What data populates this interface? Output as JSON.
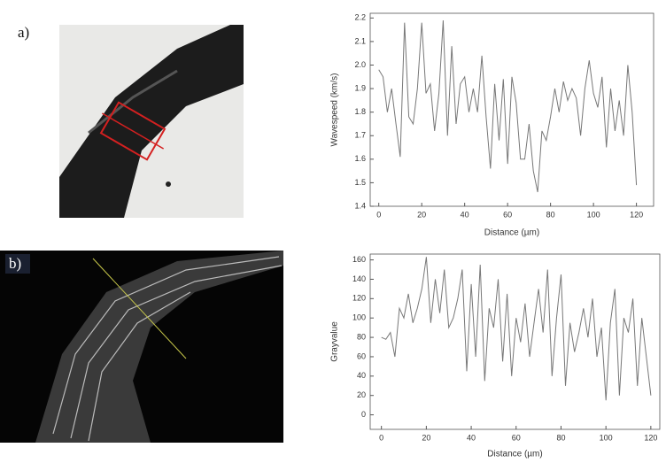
{
  "panels": [
    {
      "label": "a)"
    },
    {
      "label": "b)"
    }
  ],
  "chart_data": [
    {
      "type": "line",
      "x_label": "Distance (µm)",
      "y_label": "Wavespeed (km/s)",
      "color": "#777777",
      "x": [
        0,
        2,
        4,
        6,
        8,
        10,
        12,
        14,
        16,
        18,
        20,
        22,
        24,
        26,
        28,
        30,
        32,
        34,
        36,
        38,
        40,
        42,
        44,
        46,
        48,
        50,
        52,
        54,
        56,
        58,
        60,
        62,
        64,
        66,
        68,
        70,
        72,
        74,
        76,
        78,
        80,
        82,
        84,
        86,
        88,
        90,
        92,
        94,
        96,
        98,
        100,
        102,
        104,
        106,
        108,
        110,
        112,
        114,
        116,
        118,
        120
      ],
      "values": [
        1.98,
        1.95,
        1.8,
        1.9,
        1.75,
        1.61,
        2.18,
        1.78,
        1.75,
        1.9,
        2.18,
        1.88,
        1.92,
        1.72,
        1.88,
        2.19,
        1.7,
        2.08,
        1.75,
        1.92,
        1.95,
        1.8,
        1.9,
        1.8,
        2.04,
        1.78,
        1.56,
        1.92,
        1.68,
        1.94,
        1.58,
        1.95,
        1.84,
        1.6,
        1.6,
        1.75,
        1.55,
        1.46,
        1.72,
        1.68,
        1.78,
        1.9,
        1.8,
        1.93,
        1.85,
        1.9,
        1.86,
        1.7,
        1.9,
        2.02,
        1.88,
        1.82,
        1.95,
        1.65,
        1.9,
        1.72,
        1.85,
        1.7,
        2.0,
        1.8,
        1.49
      ],
      "xlim": [
        -4,
        128
      ],
      "xticks": [
        0,
        20,
        40,
        60,
        80,
        100,
        120
      ],
      "ylim": [
        1.4,
        2.22
      ],
      "yticks": [
        1.4,
        1.5,
        1.6,
        1.7,
        1.8,
        1.9,
        {
          "value": 2,
          "label": "2.0"
        },
        2.1,
        2.2
      ]
    },
    {
      "type": "line",
      "x_label": "Distance (µm)",
      "y_label": "Grayvalue",
      "color": "#777777",
      "x": [
        0,
        2,
        4,
        6,
        8,
        10,
        12,
        14,
        16,
        18,
        20,
        22,
        24,
        26,
        28,
        30,
        32,
        34,
        36,
        38,
        40,
        42,
        44,
        46,
        48,
        50,
        52,
        54,
        56,
        58,
        60,
        62,
        64,
        66,
        68,
        70,
        72,
        74,
        76,
        78,
        80,
        82,
        84,
        86,
        88,
        90,
        92,
        94,
        96,
        98,
        100,
        102,
        104,
        106,
        108,
        110,
        112,
        114,
        116,
        118,
        120
      ],
      "values": [
        80,
        78,
        85,
        60,
        110,
        100,
        125,
        95,
        110,
        130,
        163,
        95,
        140,
        105,
        150,
        90,
        100,
        120,
        150,
        45,
        135,
        60,
        155,
        35,
        110,
        90,
        140,
        55,
        125,
        40,
        100,
        75,
        115,
        60,
        95,
        130,
        85,
        150,
        40,
        100,
        145,
        30,
        95,
        65,
        85,
        110,
        80,
        120,
        60,
        90,
        15,
        95,
        130,
        20,
        100,
        85,
        120,
        30,
        100,
        60,
        20
      ],
      "xlim": [
        -5,
        124
      ],
      "xticks": [
        0,
        20,
        40,
        60,
        80,
        100,
        120
      ],
      "ylim": [
        -15,
        166
      ],
      "yticks": [
        0,
        20,
        40,
        60,
        80,
        100,
        120,
        140,
        160
      ]
    }
  ]
}
